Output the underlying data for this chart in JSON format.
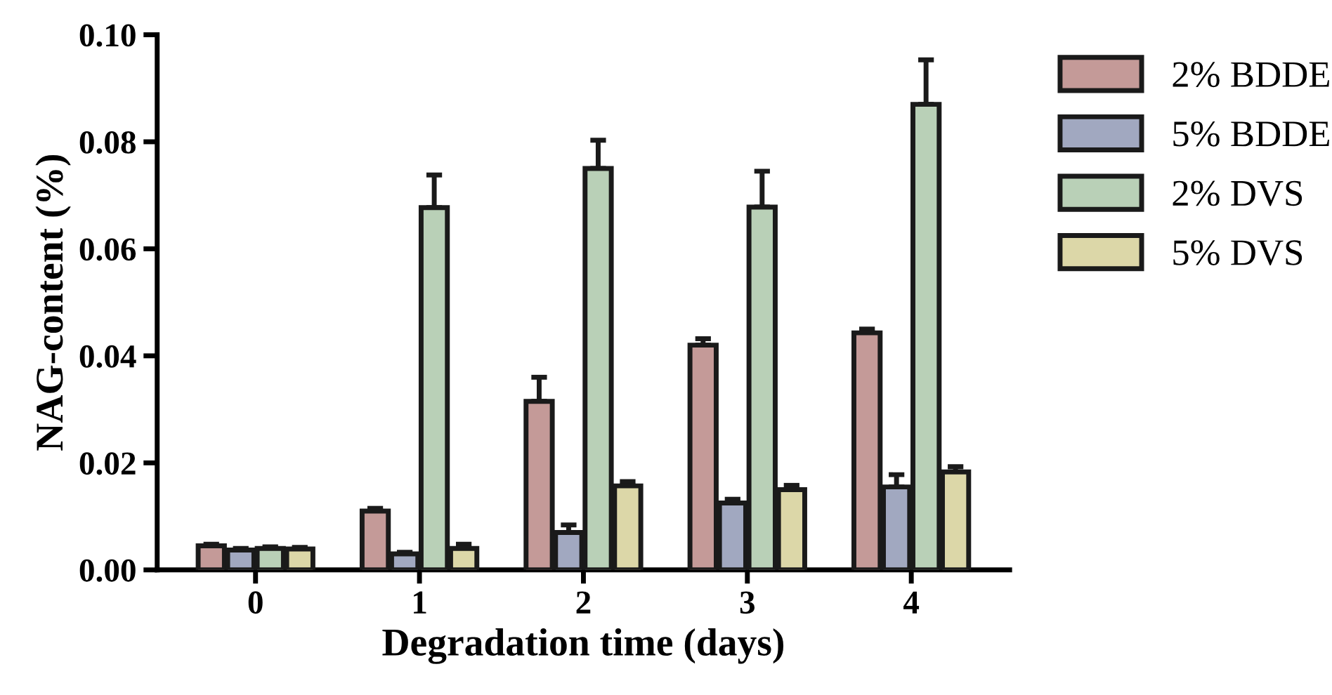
{
  "chart_data": {
    "type": "bar",
    "xlabel": "Degradation time (days)",
    "ylabel": "NAG-content (%)",
    "categories": [
      "0",
      "1",
      "2",
      "3",
      "4"
    ],
    "series": [
      {
        "name": "2% BDDE",
        "color": "#c49a98",
        "values": [
          0.0045,
          0.011,
          0.0315,
          0.042,
          0.0443
        ],
        "errors": [
          [
            0.0045,
            0.0048
          ],
          [
            0.011,
            0.0115
          ],
          [
            0.0315,
            0.036
          ],
          [
            0.042,
            0.0432
          ],
          [
            0.0443,
            0.045
          ]
        ]
      },
      {
        "name": "5% BDDE",
        "color": "#a1a8c0",
        "values": [
          0.0037,
          0.003,
          0.007,
          0.0125,
          0.0155
        ],
        "errors": [
          [
            0.0037,
            0.004
          ],
          [
            0.003,
            0.0033
          ],
          [
            0.007,
            0.0084
          ],
          [
            0.0125,
            0.0132
          ],
          [
            0.0155,
            0.0178
          ]
        ]
      },
      {
        "name": "2% DVS",
        "color": "#b9d0b7",
        "values": [
          0.004,
          0.0677,
          0.075,
          0.0678,
          0.087
        ],
        "errors": [
          [
            0.004,
            0.0043
          ],
          [
            0.0677,
            0.0738
          ],
          [
            0.075,
            0.0803
          ],
          [
            0.0678,
            0.0745
          ],
          [
            0.087,
            0.0953
          ]
        ]
      },
      {
        "name": "5% DVS",
        "color": "#dcd7a8",
        "values": [
          0.0039,
          0.004,
          0.0157,
          0.015,
          0.0183
        ],
        "errors": [
          [
            0.0039,
            0.0042
          ],
          [
            0.004,
            0.0048
          ],
          [
            0.0157,
            0.0165
          ],
          [
            0.015,
            0.0158
          ],
          [
            0.0183,
            0.0193
          ]
        ]
      }
    ],
    "ylim": [
      0,
      0.1
    ],
    "yticks": [
      {
        "value": 0,
        "label": "0.00"
      },
      {
        "value": 0.02,
        "label": "0.02"
      },
      {
        "value": 0.04,
        "label": "0.04"
      },
      {
        "value": 0.06,
        "label": "0.06"
      },
      {
        "value": 0.08,
        "label": "0.08"
      },
      {
        "value": 0.1,
        "label": "0.10"
      }
    ],
    "grid": false,
    "legend": "top right"
  }
}
